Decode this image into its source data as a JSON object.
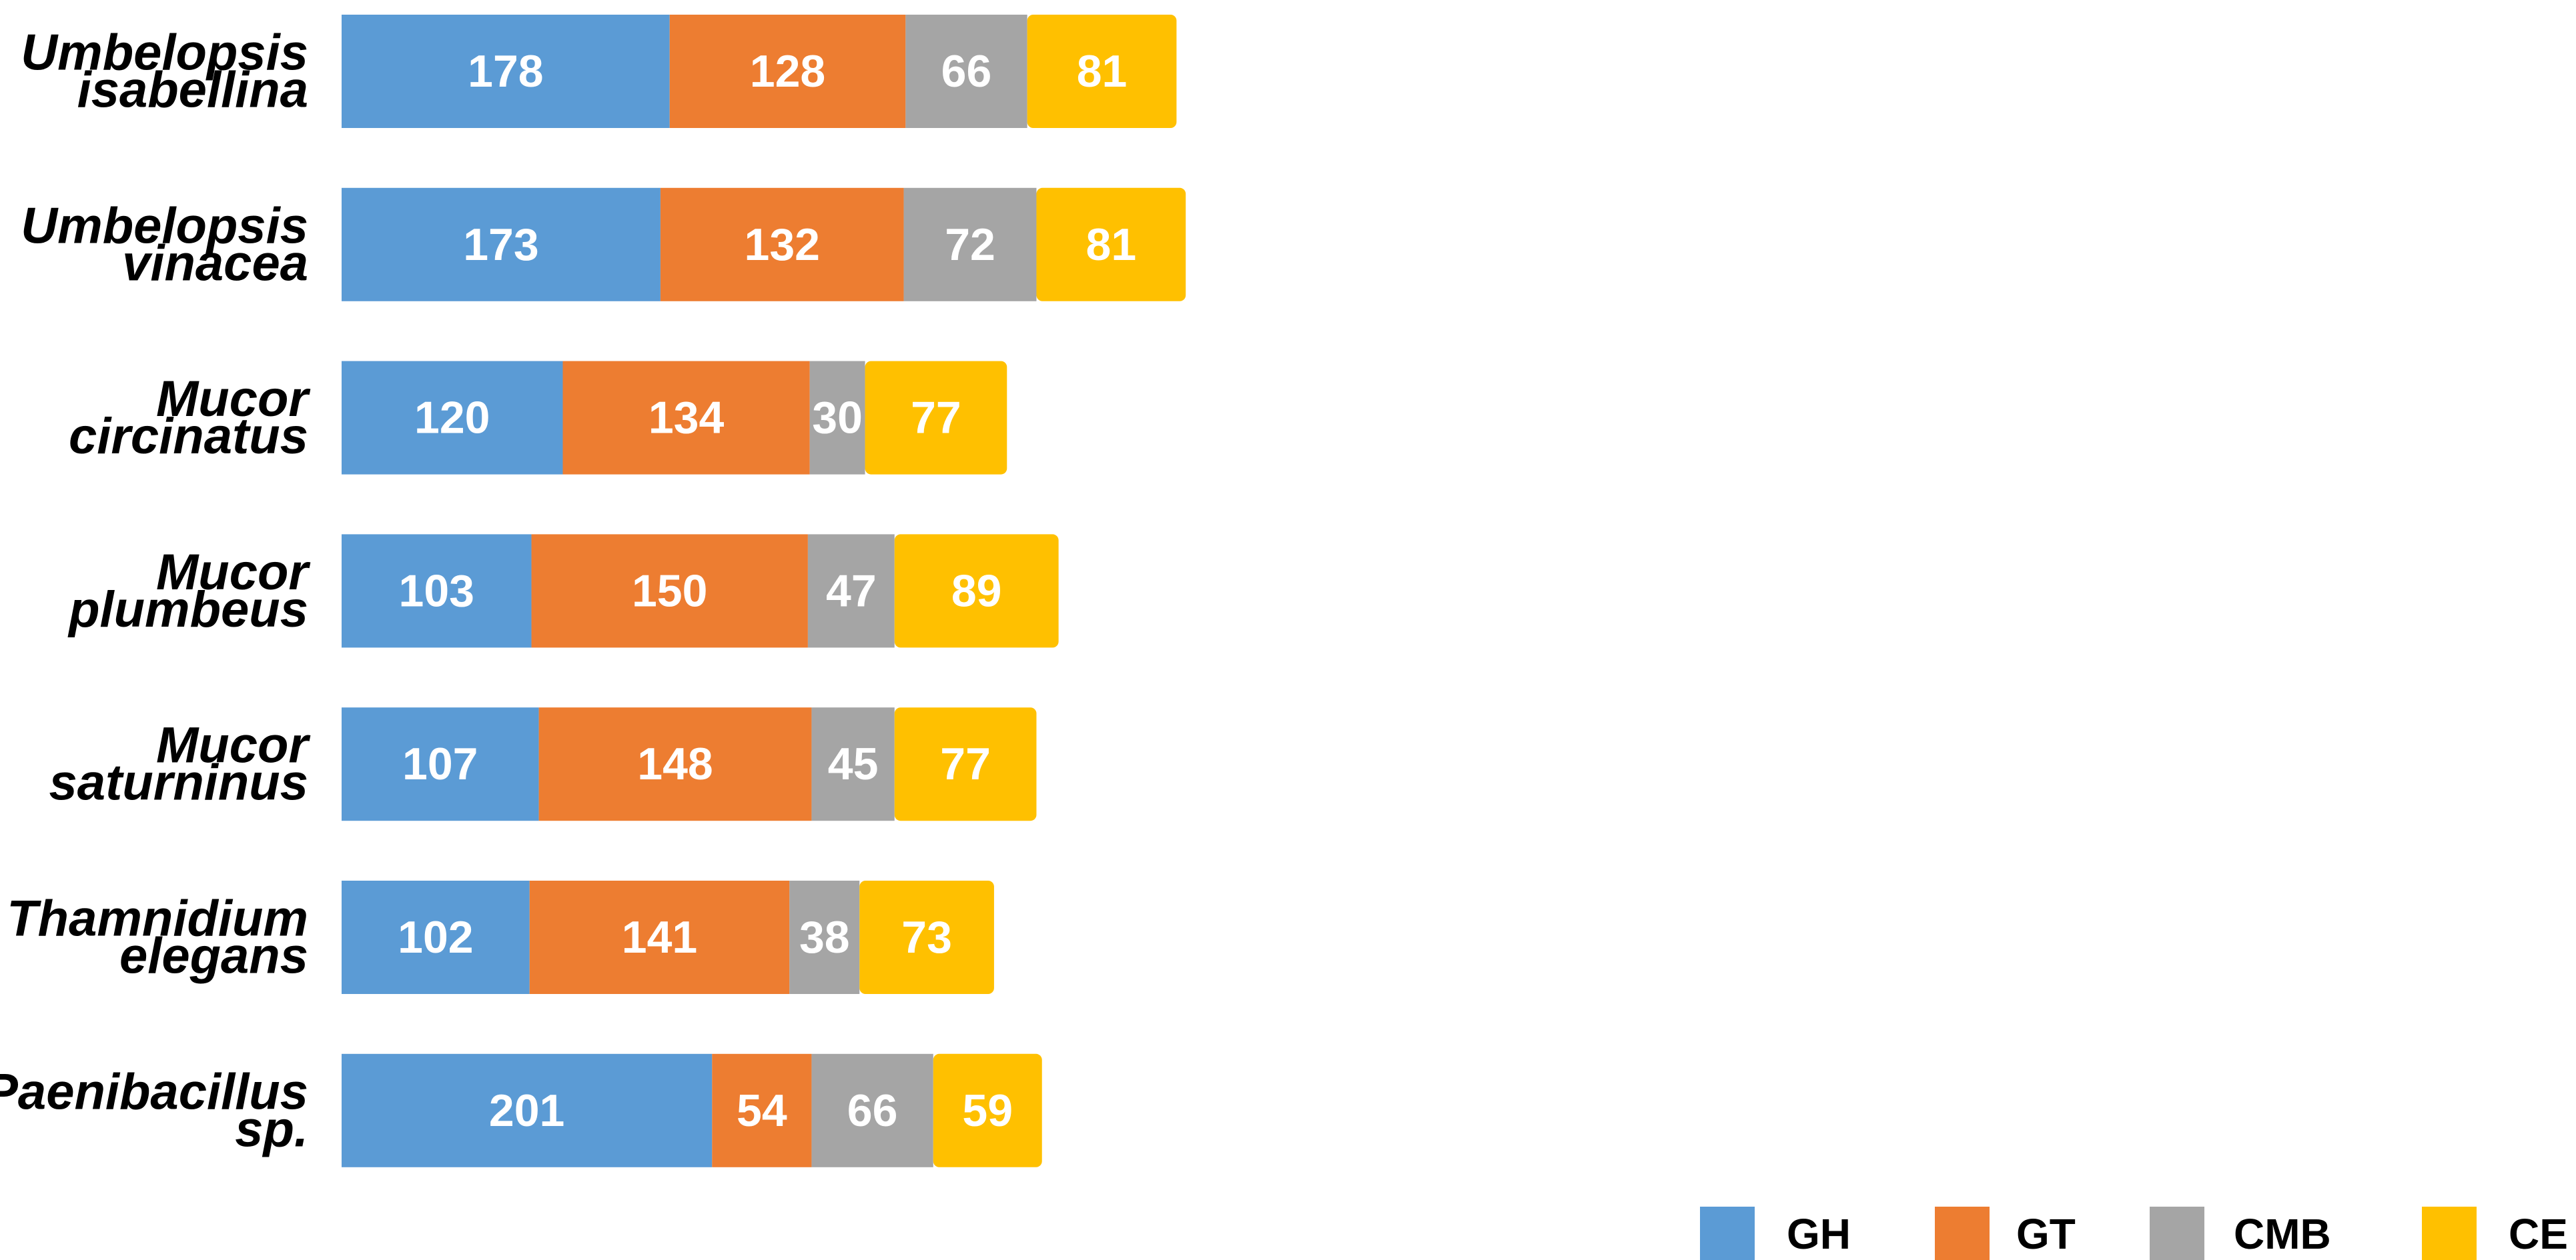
{
  "chart_data": {
    "type": "bar",
    "orientation": "horizontal",
    "stacked": true,
    "title": "",
    "xlabel": "",
    "ylabel": "",
    "grid": false,
    "legend_position": "bottom-right",
    "categories": [
      [
        "Umbelopsis",
        "isabellina"
      ],
      [
        "Umbelopsis",
        "vinacea"
      ],
      [
        "Mucor",
        "circinatus"
      ],
      [
        "Mucor",
        "plumbeus"
      ],
      [
        "Mucor",
        "saturninus"
      ],
      [
        "Thamnidium",
        "elegans"
      ],
      [
        "Paenibacillus",
        "sp."
      ]
    ],
    "series": [
      {
        "name": "GH",
        "color": "#5B9BD5",
        "values": [
          178,
          173,
          120,
          103,
          107,
          102,
          201
        ]
      },
      {
        "name": "GT",
        "color": "#ED7D31",
        "values": [
          128,
          132,
          134,
          150,
          148,
          141,
          54
        ]
      },
      {
        "name": "CMB",
        "color": "#A5A5A5",
        "values": [
          66,
          72,
          30,
          47,
          45,
          38,
          66
        ]
      },
      {
        "name": "CE",
        "color": "#FFC000",
        "values": [
          81,
          81,
          77,
          89,
          77,
          73,
          59
        ]
      }
    ]
  }
}
